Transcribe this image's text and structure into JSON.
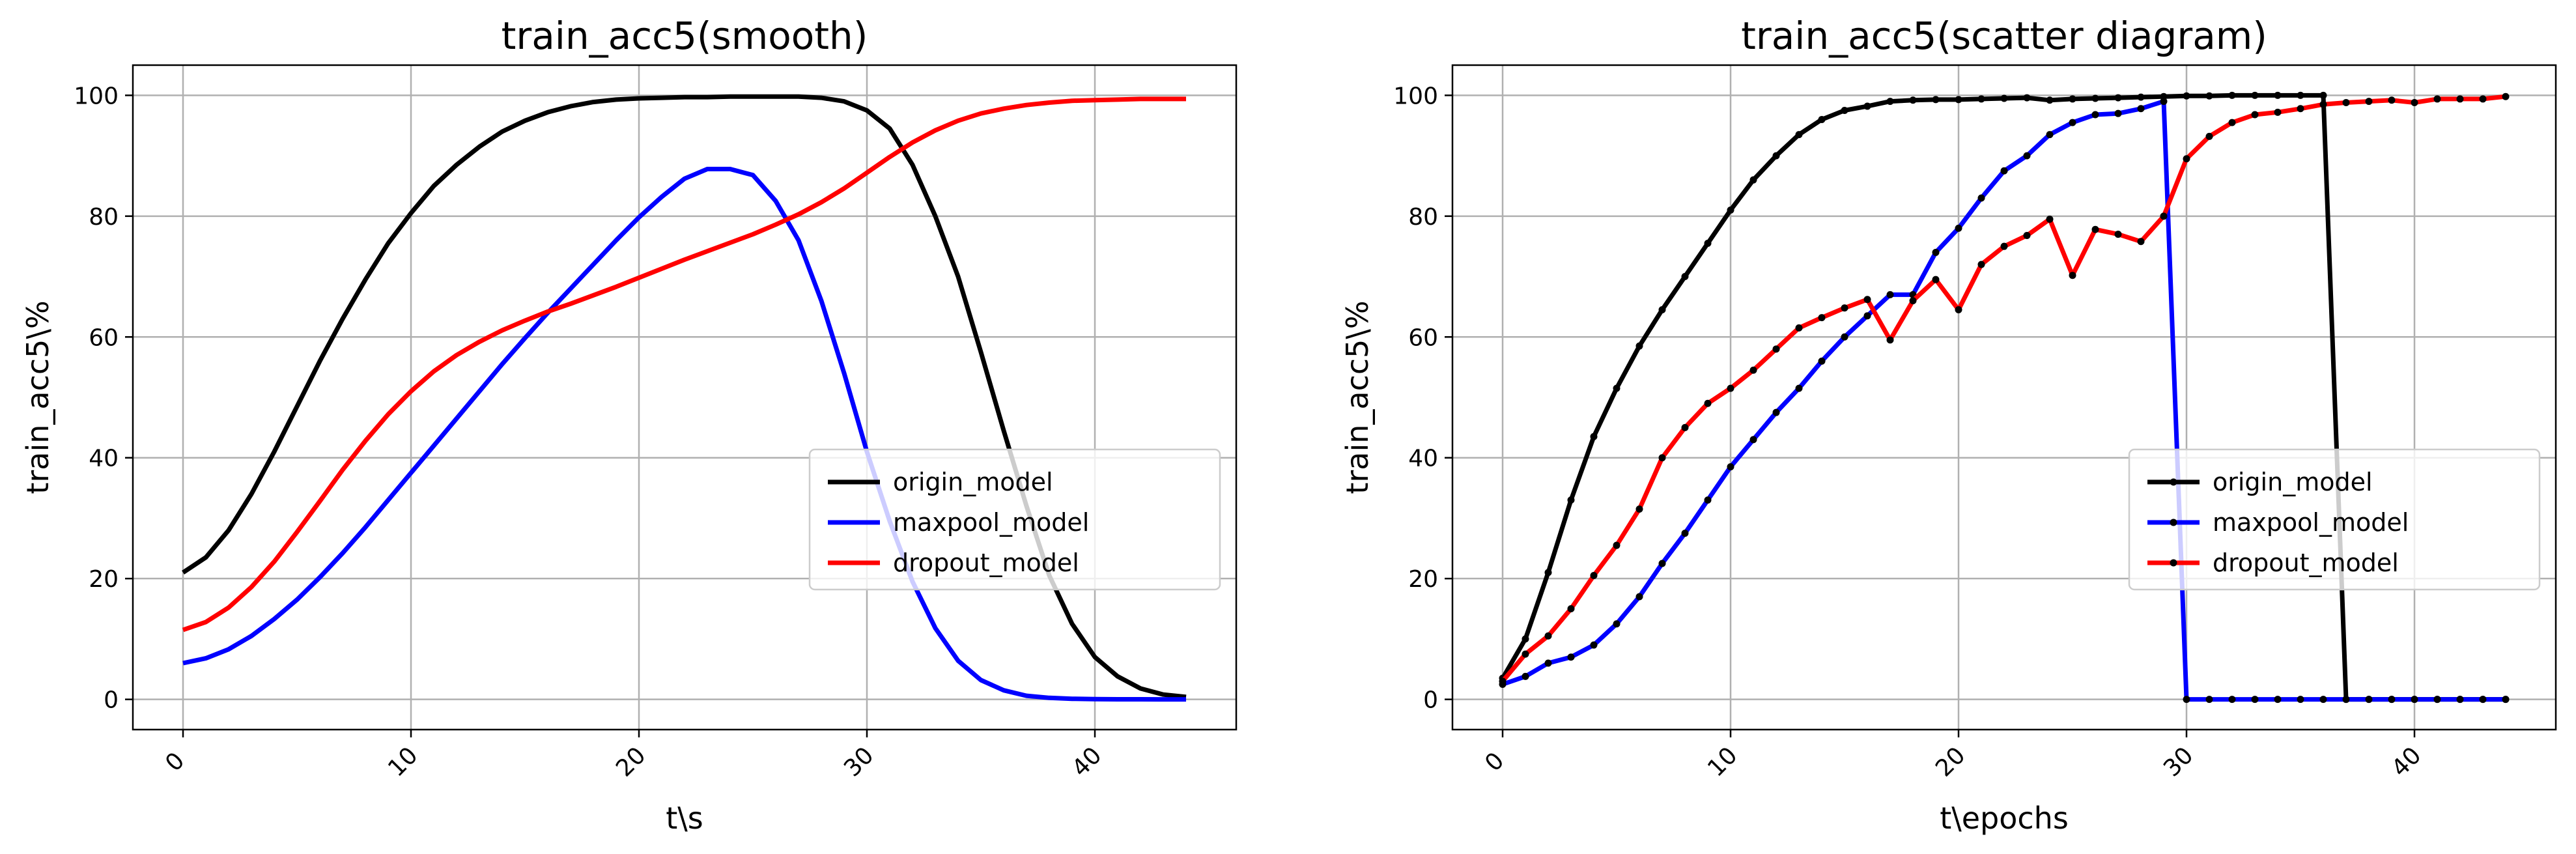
{
  "chart_data": [
    {
      "type": "line",
      "title": "train_acc5(smooth)",
      "xlabel": "t\\s",
      "ylabel": "train_acc5\\%",
      "xlim": [
        -2.2,
        46.2
      ],
      "ylim": [
        -5,
        105
      ],
      "x_ticks": [
        0,
        10,
        20,
        30,
        40
      ],
      "y_ticks": [
        0,
        20,
        40,
        60,
        80,
        100
      ],
      "grid": true,
      "markers": false,
      "legend_position": "lower-right",
      "x": [
        0,
        1,
        2,
        3,
        4,
        5,
        6,
        7,
        8,
        9,
        10,
        11,
        12,
        13,
        14,
        15,
        16,
        17,
        18,
        19,
        20,
        21,
        22,
        23,
        24,
        25,
        26,
        27,
        28,
        29,
        30,
        31,
        32,
        33,
        34,
        35,
        36,
        37,
        38,
        39,
        40,
        41,
        42,
        43,
        44
      ],
      "series": [
        {
          "name": "origin_model",
          "color": "#000000",
          "values": [
            21,
            23.5,
            28,
            34,
            41,
            48.5,
            56,
            63,
            69.5,
            75.5,
            80.5,
            85,
            88.5,
            91.5,
            94,
            95.8,
            97.2,
            98.2,
            98.9,
            99.3,
            99.5,
            99.6,
            99.7,
            99.7,
            99.8,
            99.8,
            99.8,
            99.8,
            99.6,
            99,
            97.5,
            94.5,
            88.5,
            80,
            70,
            57.5,
            44.5,
            32,
            20.5,
            12.5,
            7,
            3.8,
            1.8,
            0.8,
            0.4
          ]
        },
        {
          "name": "maxpool_model",
          "color": "#0000ff",
          "values": [
            6,
            6.8,
            8.3,
            10.5,
            13.3,
            16.5,
            20.2,
            24.2,
            28.5,
            33,
            37.5,
            42,
            46.5,
            51,
            55.5,
            59.8,
            64,
            68,
            72,
            76,
            79.8,
            83.2,
            86.2,
            87.8,
            87.8,
            86.8,
            82.5,
            76,
            66,
            54,
            41,
            29.5,
            19.5,
            11.8,
            6.4,
            3.2,
            1.5,
            0.6,
            0.25,
            0.1,
            0.05,
            0.02,
            0.01,
            0,
            0
          ]
        },
        {
          "name": "dropout_model",
          "color": "#ff0000",
          "values": [
            11.5,
            12.8,
            15.2,
            18.6,
            22.8,
            27.7,
            32.8,
            38,
            42.8,
            47.2,
            51,
            54.3,
            57,
            59.2,
            61.1,
            62.7,
            64.2,
            65.5,
            66.9,
            68.3,
            69.8,
            71.3,
            72.8,
            74.2,
            75.6,
            77,
            78.6,
            80.3,
            82.3,
            84.6,
            87.2,
            89.8,
            92.2,
            94.2,
            95.8,
            97,
            97.8,
            98.4,
            98.8,
            99.1,
            99.2,
            99.3,
            99.4,
            99.4,
            99.4
          ]
        }
      ]
    },
    {
      "type": "line",
      "title": "train_acc5(scatter diagram)",
      "xlabel": "t\\epochs",
      "ylabel": "train_acc5\\%",
      "xlim": [
        -2.2,
        46.2
      ],
      "ylim": [
        -5,
        105
      ],
      "x_ticks": [
        0,
        10,
        20,
        30,
        40
      ],
      "y_ticks": [
        0,
        20,
        40,
        60,
        80,
        100
      ],
      "grid": true,
      "markers": true,
      "legend_position": "lower-right",
      "x": [
        0,
        1,
        2,
        3,
        4,
        5,
        6,
        7,
        8,
        9,
        10,
        11,
        12,
        13,
        14,
        15,
        16,
        17,
        18,
        19,
        20,
        21,
        22,
        23,
        24,
        25,
        26,
        27,
        28,
        29,
        30,
        31,
        32,
        33,
        34,
        35,
        36,
        37,
        38,
        39,
        40,
        41,
        42,
        43,
        44
      ],
      "series": [
        {
          "name": "origin_model",
          "color": "#000000",
          "values": [
            3.5,
            10,
            21,
            33,
            43.5,
            51.5,
            58.5,
            64.5,
            70,
            75.5,
            81,
            86,
            90,
            93.5,
            96,
            97.5,
            98.2,
            99,
            99.2,
            99.3,
            99.3,
            99.4,
            99.5,
            99.6,
            99.2,
            99.4,
            99.5,
            99.6,
            99.7,
            99.8,
            99.9,
            99.9,
            100,
            100,
            100,
            100,
            100,
            0,
            0,
            0,
            0,
            0,
            0,
            0,
            0
          ]
        },
        {
          "name": "maxpool_model",
          "color": "#0000ff",
          "values": [
            2.5,
            3.8,
            6,
            7,
            9,
            12.5,
            17,
            22.5,
            27.5,
            33,
            38.5,
            43,
            47.5,
            51.5,
            56,
            60,
            63.5,
            67,
            67,
            74,
            78,
            83,
            87.5,
            90,
            93.5,
            95.5,
            96.8,
            97,
            97.8,
            99,
            0,
            0,
            0,
            0,
            0,
            0,
            0,
            0,
            0,
            0,
            0,
            0,
            0,
            0,
            0
          ]
        },
        {
          "name": "dropout_model",
          "color": "#ff0000",
          "values": [
            3,
            7.5,
            10.5,
            15,
            20.5,
            25.5,
            31.5,
            40,
            45,
            49,
            51.5,
            54.5,
            58,
            61.5,
            63.2,
            64.8,
            66.2,
            59.5,
            66,
            69.5,
            64.5,
            72,
            75,
            76.8,
            79.5,
            70.2,
            77.8,
            77,
            75.8,
            80,
            89.5,
            93.2,
            95.5,
            96.8,
            97.2,
            97.8,
            98.5,
            98.8,
            99,
            99.2,
            98.8,
            99.4,
            99.4,
            99.4,
            99.8
          ]
        }
      ]
    }
  ]
}
